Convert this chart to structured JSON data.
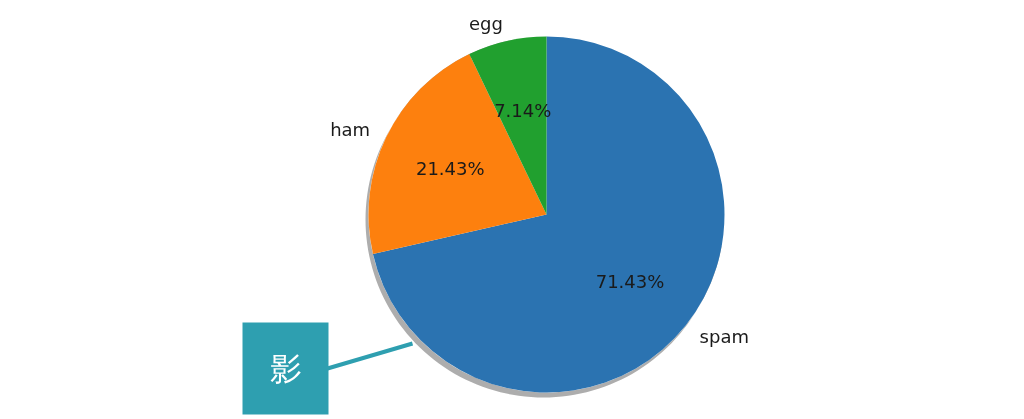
{
  "chart_data": {
    "type": "pie",
    "categories": [
      "spam",
      "ham",
      "egg"
    ],
    "values": [
      71.43,
      21.43,
      7.14
    ],
    "colors": [
      "#2b73b1",
      "#fd800e",
      "#21a02f"
    ],
    "value_labels": [
      "71.43%",
      "21.43%",
      "7.14%"
    ],
    "annotations": [
      "影"
    ]
  }
}
